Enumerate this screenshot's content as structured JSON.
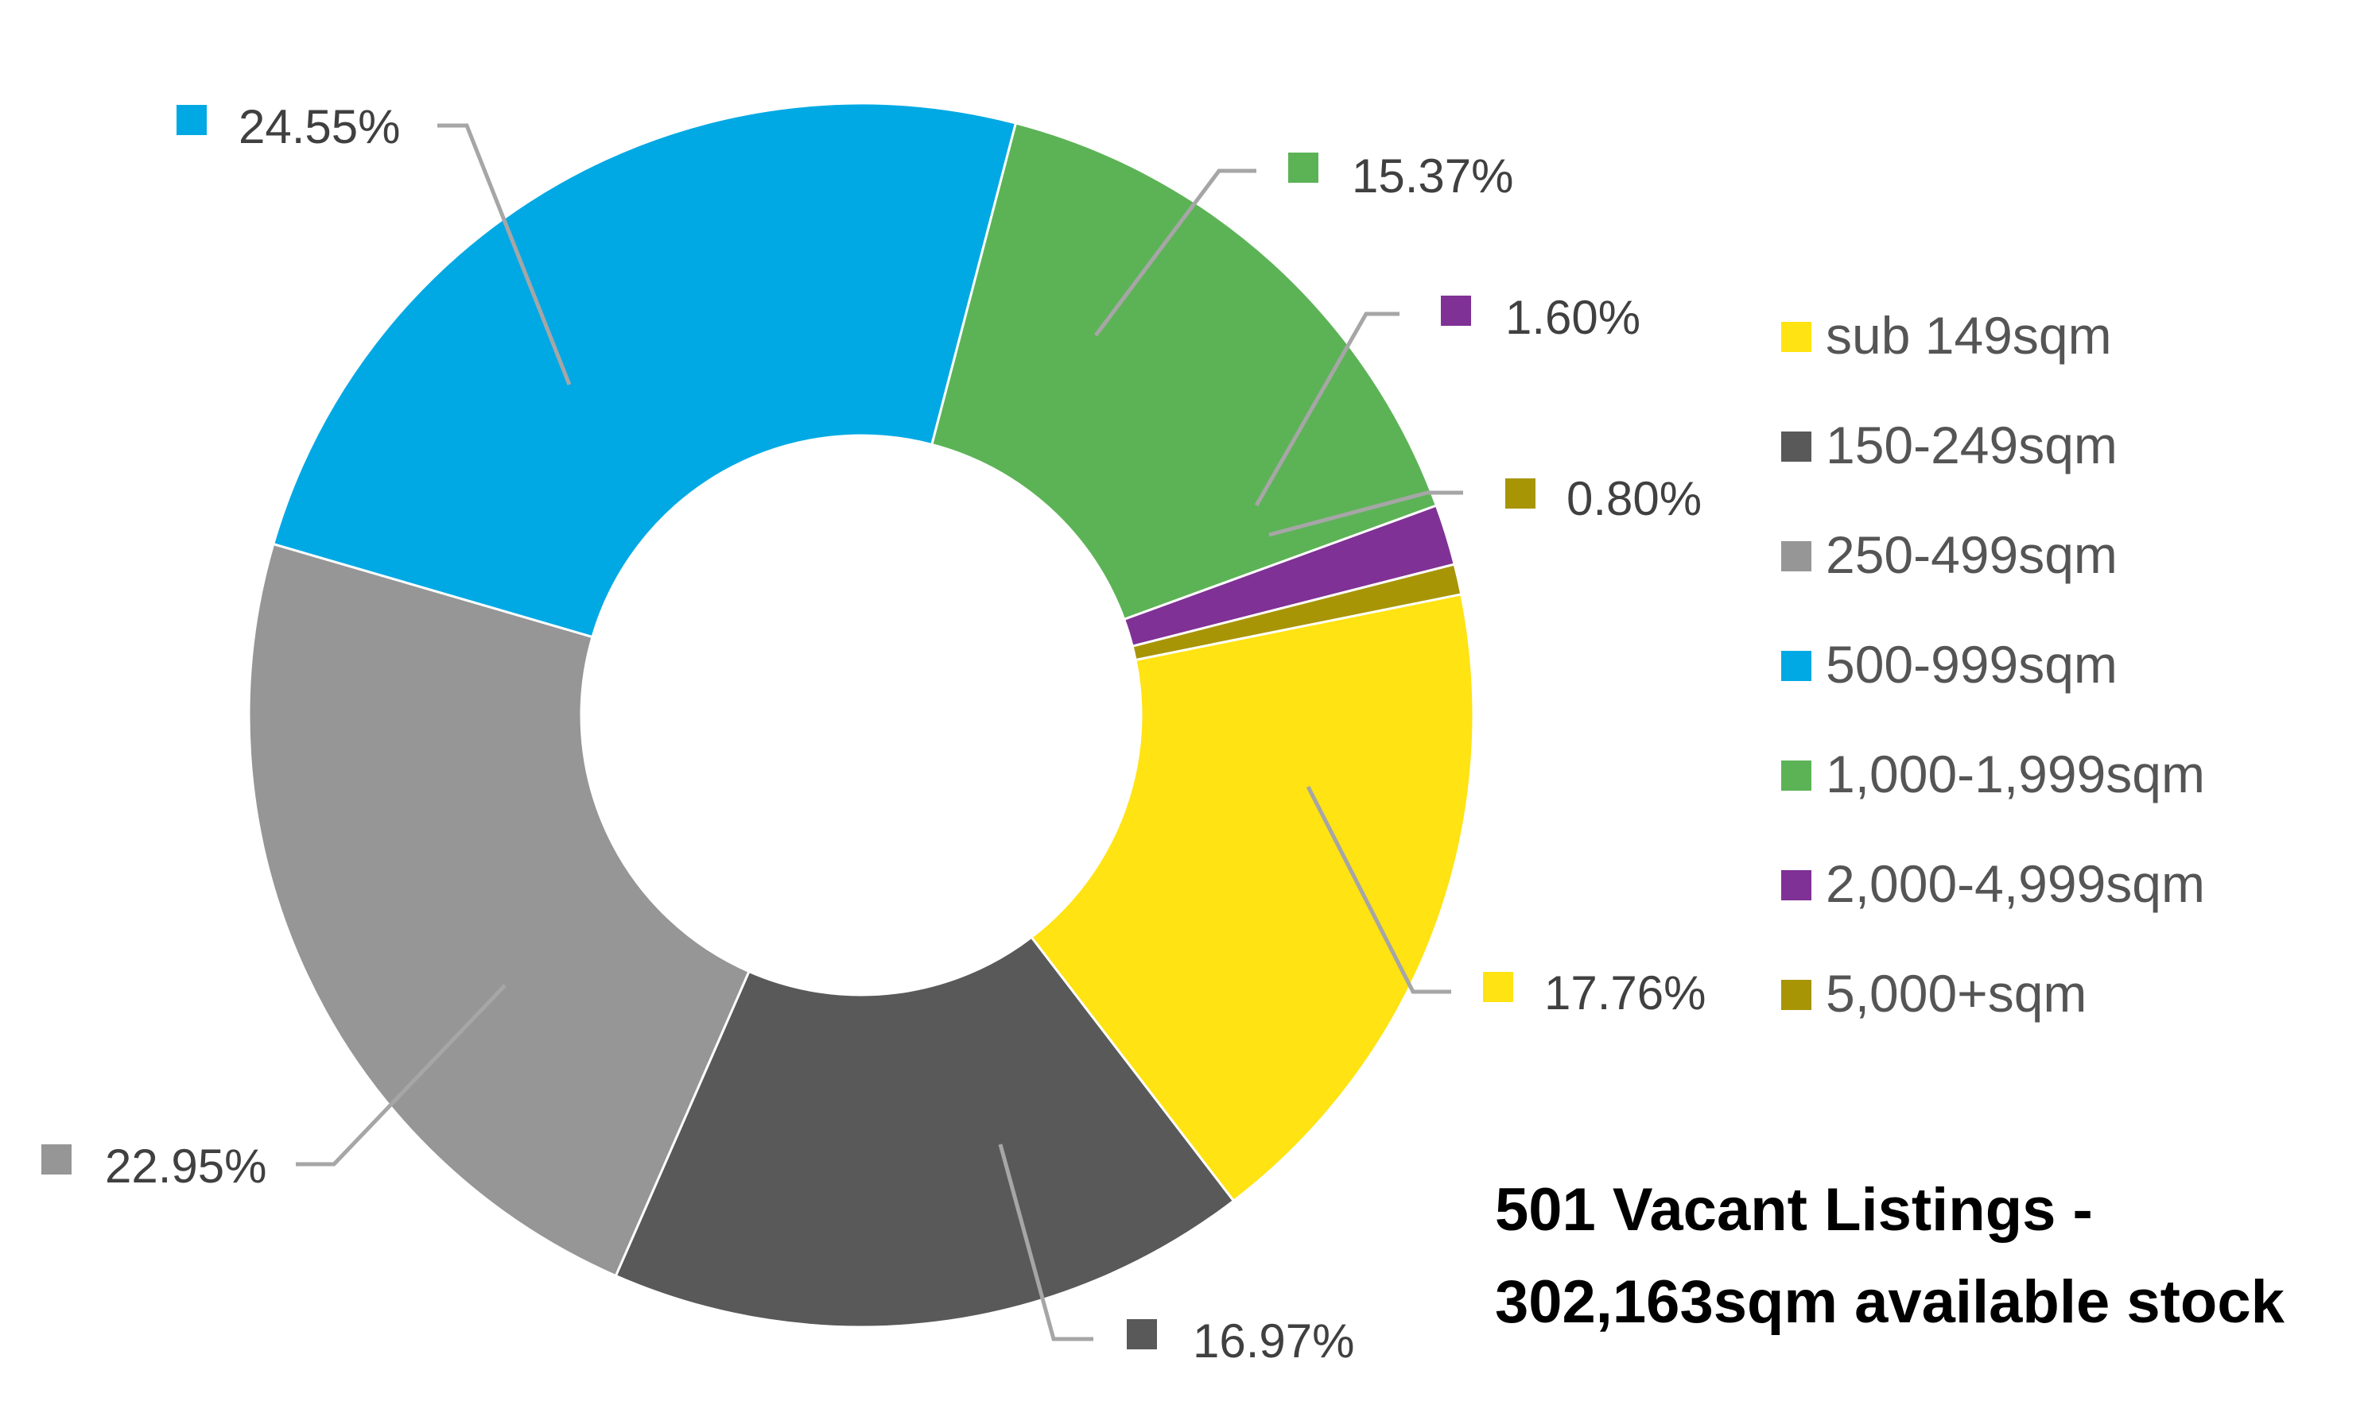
{
  "chart_data": {
    "type": "pie",
    "variant": "donut",
    "categories": [
      "sub 149sqm",
      "150-249sqm",
      "250-499sqm",
      "500-999sqm",
      "1,000-1,999sqm",
      "2,000-4,999sqm",
      "5,000+sqm"
    ],
    "values": [
      17.76,
      16.97,
      22.95,
      24.55,
      15.37,
      1.6,
      0.8
    ],
    "value_labels": [
      "17.76%",
      "16.97%",
      "22.95%",
      "24.55%",
      "15.37%",
      "1.60%",
      "0.80%"
    ],
    "colors": [
      "#FFE312",
      "#595959",
      "#969696",
      "#00A9E4",
      "#5CB356",
      "#7F3195",
      "#A79506"
    ],
    "legend_position": "right",
    "title": "",
    "caption_lines": [
      "501 Vacant Listings -",
      "302,163sqm available stock"
    ]
  }
}
